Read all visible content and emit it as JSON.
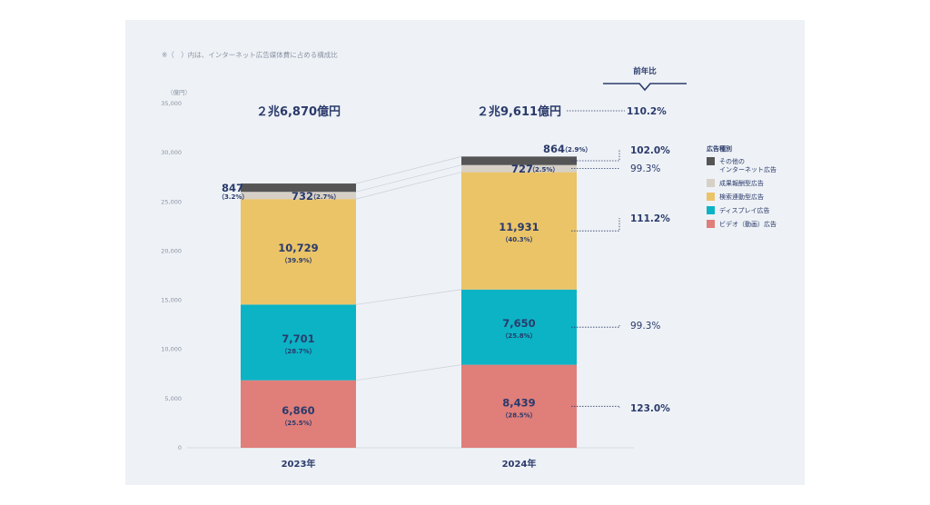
{
  "note": "※（　）内は、インターネット広告媒体費に占める構成比",
  "chart_data": {
    "type": "bar",
    "stacked": true,
    "unit_label": "（億円）",
    "ylim": [
      0,
      35000
    ],
    "yticks": [
      "0",
      "5,000",
      "10,000",
      "15,000",
      "20,000",
      "25,000",
      "30,000",
      "35,000"
    ],
    "categories": [
      "2023年",
      "2024年"
    ],
    "totals": [
      "２兆6,870億円",
      "２兆9,611億円"
    ],
    "series": [
      {
        "name": "ビデオ（動画）広告",
        "color": "#e07e7a",
        "values": [
          6860,
          8439
        ],
        "labels": [
          "6,860",
          "8,439"
        ],
        "pcts": [
          "（25.5%）",
          "（28.5%）"
        ],
        "yoy": "123.0%",
        "yoy_bold": true
      },
      {
        "name": "ディスプレイ広告",
        "color": "#0bb3c5",
        "values": [
          7701,
          7650
        ],
        "labels": [
          "7,701",
          "7,650"
        ],
        "pcts": [
          "（28.7%）",
          "（25.8%）"
        ],
        "yoy": "99.3%",
        "yoy_bold": false
      },
      {
        "name": "検索連動型広告",
        "color": "#ebc468",
        "values": [
          10729,
          11931
        ],
        "labels": [
          "10,729",
          "11,931"
        ],
        "pcts": [
          "（39.9%）",
          "（40.3%）"
        ],
        "yoy": "111.2%",
        "yoy_bold": true
      },
      {
        "name": "成果報酬型広告",
        "color": "#d6d0c6",
        "values": [
          732,
          727
        ],
        "labels": [
          "732",
          "727"
        ],
        "pcts": [
          "（2.7%）",
          "（2.5%）"
        ],
        "yoy": "99.3%",
        "yoy_bold": false
      },
      {
        "name": "その他の\nインターネット広告",
        "color": "#555555",
        "values": [
          847,
          864
        ],
        "labels": [
          "847",
          "864"
        ],
        "pcts": [
          "（3.2%）",
          "（2.9%）"
        ],
        "yoy": "102.0%",
        "yoy_bold": true
      }
    ],
    "yoy_header": "前年比",
    "yoy_total": "110.2%",
    "legend_title": "広告種別",
    "legend_order": [
      4,
      3,
      2,
      1,
      0
    ]
  }
}
